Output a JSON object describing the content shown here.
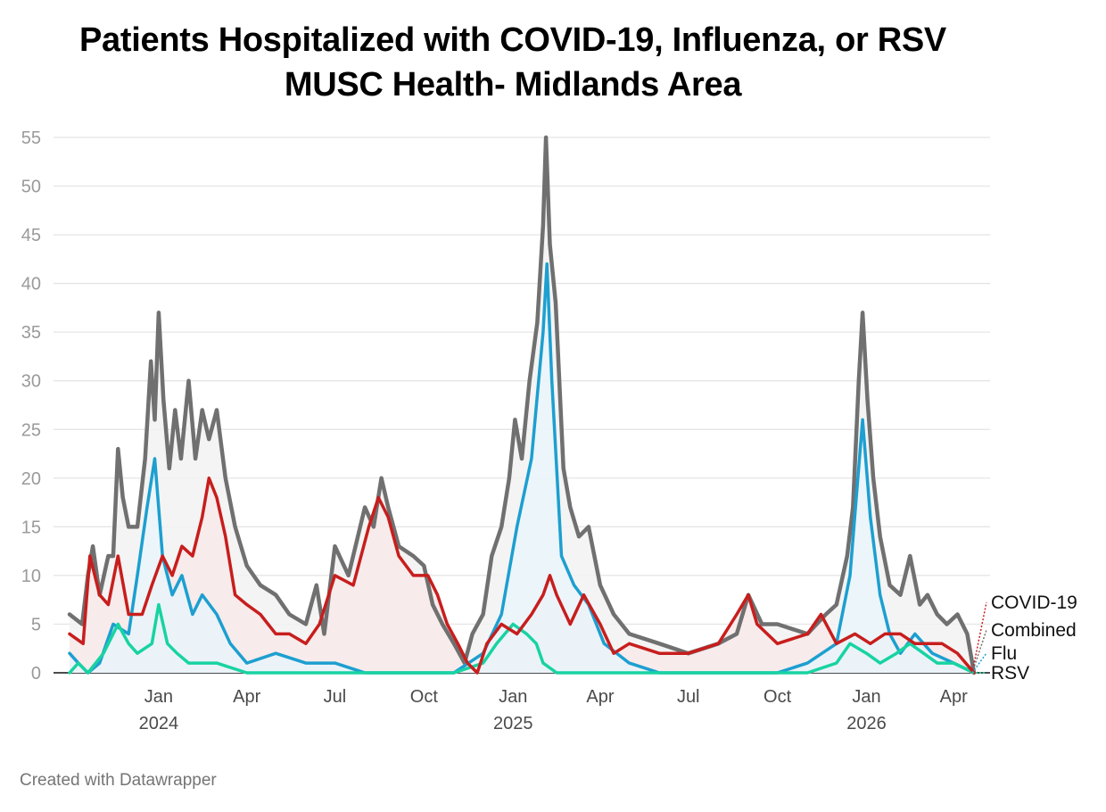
{
  "title_line1": "Patients Hospitalized with COVID-19, Influenza, or RSV",
  "title_line2": "MUSC Health- Midlands Area",
  "footer": "Created with Datawrapper",
  "chart_data": {
    "type": "line",
    "title": "Patients Hospitalized with COVID-19, Influenza, or RSV",
    "subtitle": "MUSC Health- Midlands Area",
    "x_start": "2023-10-01",
    "x_end": "2026-04-22",
    "ylim": [
      0,
      55
    ],
    "y_ticks": [
      0,
      5,
      10,
      15,
      20,
      25,
      30,
      35,
      40,
      45,
      50,
      55
    ],
    "x_ticks": [
      {
        "date": "2024-01-01",
        "label": "Jan",
        "year": "2024"
      },
      {
        "date": "2024-04-01",
        "label": "Apr",
        "year": ""
      },
      {
        "date": "2024-07-01",
        "label": "Jul",
        "year": ""
      },
      {
        "date": "2024-10-01",
        "label": "Oct",
        "year": ""
      },
      {
        "date": "2025-01-01",
        "label": "Jan",
        "year": "2025"
      },
      {
        "date": "2025-04-01",
        "label": "Apr",
        "year": ""
      },
      {
        "date": "2025-07-01",
        "label": "Jul",
        "year": ""
      },
      {
        "date": "2025-10-01",
        "label": "Oct",
        "year": ""
      },
      {
        "date": "2026-01-01",
        "label": "Jan",
        "year": "2026"
      },
      {
        "date": "2026-04-01",
        "label": "Apr",
        "year": ""
      }
    ],
    "grid": true,
    "legend": "end-of-line labels, right",
    "series": [
      {
        "name": "Combined",
        "color": "#707070",
        "points": [
          [
            "2023-10-01",
            6
          ],
          [
            "2023-10-14",
            5
          ],
          [
            "2023-10-20",
            10
          ],
          [
            "2023-10-25",
            13
          ],
          [
            "2023-11-01",
            8
          ],
          [
            "2023-11-10",
            12
          ],
          [
            "2023-11-15",
            12
          ],
          [
            "2023-11-20",
            23
          ],
          [
            "2023-11-25",
            18
          ],
          [
            "2023-12-01",
            15
          ],
          [
            "2023-12-10",
            15
          ],
          [
            "2023-12-18",
            22
          ],
          [
            "2023-12-24",
            32
          ],
          [
            "2023-12-28",
            26
          ],
          [
            "2024-01-01",
            37
          ],
          [
            "2024-01-06",
            28
          ],
          [
            "2024-01-12",
            21
          ],
          [
            "2024-01-18",
            27
          ],
          [
            "2024-01-24",
            22
          ],
          [
            "2024-02-01",
            30
          ],
          [
            "2024-02-08",
            22
          ],
          [
            "2024-02-15",
            27
          ],
          [
            "2024-02-22",
            24
          ],
          [
            "2024-03-01",
            27
          ],
          [
            "2024-03-10",
            20
          ],
          [
            "2024-03-20",
            15
          ],
          [
            "2024-04-01",
            11
          ],
          [
            "2024-04-15",
            9
          ],
          [
            "2024-05-01",
            8
          ],
          [
            "2024-05-15",
            6
          ],
          [
            "2024-06-01",
            5
          ],
          [
            "2024-06-12",
            9
          ],
          [
            "2024-06-20",
            4
          ],
          [
            "2024-07-01",
            13
          ],
          [
            "2024-07-15",
            10
          ],
          [
            "2024-08-01",
            17
          ],
          [
            "2024-08-10",
            15
          ],
          [
            "2024-08-18",
            20
          ],
          [
            "2024-08-25",
            17
          ],
          [
            "2024-09-05",
            13
          ],
          [
            "2024-09-20",
            12
          ],
          [
            "2024-10-01",
            11
          ],
          [
            "2024-10-10",
            7
          ],
          [
            "2024-10-20",
            5
          ],
          [
            "2024-11-01",
            3
          ],
          [
            "2024-11-12",
            1
          ],
          [
            "2024-11-20",
            4
          ],
          [
            "2024-12-01",
            6
          ],
          [
            "2024-12-10",
            12
          ],
          [
            "2024-12-20",
            15
          ],
          [
            "2024-12-28",
            20
          ],
          [
            "2025-01-03",
            26
          ],
          [
            "2025-01-10",
            22
          ],
          [
            "2025-01-18",
            30
          ],
          [
            "2025-01-26",
            36
          ],
          [
            "2025-02-01",
            46
          ],
          [
            "2025-02-04",
            55
          ],
          [
            "2025-02-08",
            44
          ],
          [
            "2025-02-14",
            38
          ],
          [
            "2025-02-22",
            21
          ],
          [
            "2025-03-01",
            17
          ],
          [
            "2025-03-10",
            14
          ],
          [
            "2025-03-20",
            15
          ],
          [
            "2025-04-01",
            9
          ],
          [
            "2025-04-15",
            6
          ],
          [
            "2025-05-01",
            4
          ],
          [
            "2025-06-01",
            3
          ],
          [
            "2025-07-01",
            2
          ],
          [
            "2025-08-01",
            3
          ],
          [
            "2025-08-20",
            4
          ],
          [
            "2025-09-01",
            8
          ],
          [
            "2025-09-15",
            5
          ],
          [
            "2025-10-01",
            5
          ],
          [
            "2025-11-01",
            4
          ],
          [
            "2025-11-20",
            6
          ],
          [
            "2025-12-01",
            7
          ],
          [
            "2025-12-12",
            12
          ],
          [
            "2025-12-18",
            17
          ],
          [
            "2025-12-24",
            30
          ],
          [
            "2025-12-28",
            37
          ],
          [
            "2026-01-02",
            28
          ],
          [
            "2026-01-08",
            20
          ],
          [
            "2026-01-15",
            14
          ],
          [
            "2026-01-25",
            9
          ],
          [
            "2026-02-05",
            8
          ],
          [
            "2026-02-15",
            12
          ],
          [
            "2026-02-25",
            7
          ],
          [
            "2026-03-05",
            8
          ],
          [
            "2026-03-15",
            6
          ],
          [
            "2026-03-25",
            5
          ],
          [
            "2026-04-05",
            6
          ],
          [
            "2026-04-15",
            4
          ],
          [
            "2026-04-22",
            0
          ]
        ]
      },
      {
        "name": "COVID-19",
        "color": "#c71e1d",
        "points": [
          [
            "2023-10-01",
            4
          ],
          [
            "2023-10-15",
            3
          ],
          [
            "2023-10-22",
            12
          ],
          [
            "2023-11-01",
            8
          ],
          [
            "2023-11-10",
            7
          ],
          [
            "2023-11-20",
            12
          ],
          [
            "2023-12-01",
            6
          ],
          [
            "2023-12-15",
            6
          ],
          [
            "2023-12-25",
            9
          ],
          [
            "2024-01-05",
            12
          ],
          [
            "2024-01-15",
            10
          ],
          [
            "2024-01-25",
            13
          ],
          [
            "2024-02-05",
            12
          ],
          [
            "2024-02-15",
            16
          ],
          [
            "2024-02-22",
            20
          ],
          [
            "2024-03-01",
            18
          ],
          [
            "2024-03-10",
            14
          ],
          [
            "2024-03-20",
            8
          ],
          [
            "2024-04-01",
            7
          ],
          [
            "2024-04-15",
            6
          ],
          [
            "2024-05-01",
            4
          ],
          [
            "2024-05-15",
            4
          ],
          [
            "2024-06-01",
            3
          ],
          [
            "2024-06-15",
            5
          ],
          [
            "2024-07-01",
            10
          ],
          [
            "2024-07-20",
            9
          ],
          [
            "2024-08-05",
            15
          ],
          [
            "2024-08-15",
            18
          ],
          [
            "2024-08-25",
            16
          ],
          [
            "2024-09-05",
            12
          ],
          [
            "2024-09-20",
            10
          ],
          [
            "2024-10-05",
            10
          ],
          [
            "2024-10-15",
            8
          ],
          [
            "2024-10-25",
            5
          ],
          [
            "2024-11-05",
            3
          ],
          [
            "2024-11-15",
            1
          ],
          [
            "2024-11-25",
            0
          ],
          [
            "2024-12-05",
            3
          ],
          [
            "2024-12-20",
            5
          ],
          [
            "2025-01-05",
            4
          ],
          [
            "2025-01-20",
            6
          ],
          [
            "2025-02-01",
            8
          ],
          [
            "2025-02-08",
            10
          ],
          [
            "2025-02-15",
            8
          ],
          [
            "2025-03-01",
            5
          ],
          [
            "2025-03-15",
            8
          ],
          [
            "2025-04-01",
            5
          ],
          [
            "2025-04-15",
            2
          ],
          [
            "2025-05-01",
            3
          ],
          [
            "2025-06-01",
            2
          ],
          [
            "2025-07-01",
            2
          ],
          [
            "2025-08-01",
            3
          ],
          [
            "2025-08-20",
            6
          ],
          [
            "2025-09-01",
            8
          ],
          [
            "2025-09-10",
            5
          ],
          [
            "2025-10-01",
            3
          ],
          [
            "2025-11-01",
            4
          ],
          [
            "2025-11-15",
            6
          ],
          [
            "2025-12-01",
            3
          ],
          [
            "2025-12-20",
            4
          ],
          [
            "2026-01-05",
            3
          ],
          [
            "2026-01-20",
            4
          ],
          [
            "2026-02-05",
            4
          ],
          [
            "2026-02-20",
            3
          ],
          [
            "2026-03-05",
            3
          ],
          [
            "2026-03-20",
            3
          ],
          [
            "2026-04-05",
            2
          ],
          [
            "2026-04-22",
            0
          ]
        ]
      },
      {
        "name": "Flu",
        "color": "#1d9fd0",
        "points": [
          [
            "2023-10-01",
            2
          ],
          [
            "2023-10-10",
            1
          ],
          [
            "2023-10-20",
            0
          ],
          [
            "2023-11-01",
            1
          ],
          [
            "2023-11-15",
            5
          ],
          [
            "2023-12-01",
            4
          ],
          [
            "2023-12-10",
            10
          ],
          [
            "2023-12-20",
            17
          ],
          [
            "2023-12-28",
            22
          ],
          [
            "2024-01-05",
            12
          ],
          [
            "2024-01-15",
            8
          ],
          [
            "2024-01-25",
            10
          ],
          [
            "2024-02-05",
            6
          ],
          [
            "2024-02-15",
            8
          ],
          [
            "2024-03-01",
            6
          ],
          [
            "2024-03-15",
            3
          ],
          [
            "2024-04-01",
            1
          ],
          [
            "2024-05-01",
            2
          ],
          [
            "2024-06-01",
            1
          ],
          [
            "2024-07-01",
            1
          ],
          [
            "2024-08-01",
            0
          ],
          [
            "2024-09-01",
            0
          ],
          [
            "2024-10-01",
            0
          ],
          [
            "2024-11-01",
            0
          ],
          [
            "2024-12-01",
            2
          ],
          [
            "2024-12-20",
            6
          ],
          [
            "2025-01-05",
            15
          ],
          [
            "2025-01-20",
            22
          ],
          [
            "2025-02-01",
            35
          ],
          [
            "2025-02-05",
            42
          ],
          [
            "2025-02-10",
            30
          ],
          [
            "2025-02-20",
            12
          ],
          [
            "2025-03-05",
            9
          ],
          [
            "2025-03-20",
            7
          ],
          [
            "2025-04-05",
            3
          ],
          [
            "2025-05-01",
            1
          ],
          [
            "2025-06-01",
            0
          ],
          [
            "2025-07-01",
            0
          ],
          [
            "2025-08-01",
            0
          ],
          [
            "2025-09-01",
            0
          ],
          [
            "2025-10-01",
            0
          ],
          [
            "2025-11-01",
            1
          ],
          [
            "2025-12-01",
            3
          ],
          [
            "2025-12-15",
            10
          ],
          [
            "2025-12-28",
            26
          ],
          [
            "2026-01-05",
            16
          ],
          [
            "2026-01-15",
            8
          ],
          [
            "2026-01-25",
            4
          ],
          [
            "2026-02-05",
            2
          ],
          [
            "2026-02-20",
            4
          ],
          [
            "2026-03-10",
            2
          ],
          [
            "2026-04-01",
            1
          ],
          [
            "2026-04-22",
            0
          ]
        ]
      },
      {
        "name": "RSV",
        "color": "#18d3a2",
        "points": [
          [
            "2023-10-01",
            0
          ],
          [
            "2023-10-10",
            1
          ],
          [
            "2023-10-20",
            0
          ],
          [
            "2023-11-05",
            2
          ],
          [
            "2023-11-20",
            5
          ],
          [
            "2023-12-01",
            3
          ],
          [
            "2023-12-10",
            2
          ],
          [
            "2023-12-25",
            3
          ],
          [
            "2024-01-01",
            7
          ],
          [
            "2024-01-10",
            3
          ],
          [
            "2024-01-20",
            2
          ],
          [
            "2024-02-01",
            1
          ],
          [
            "2024-03-01",
            1
          ],
          [
            "2024-04-01",
            0
          ],
          [
            "2024-05-01",
            0
          ],
          [
            "2024-06-01",
            0
          ],
          [
            "2024-07-01",
            0
          ],
          [
            "2024-08-01",
            0
          ],
          [
            "2024-09-01",
            0
          ],
          [
            "2024-10-01",
            0
          ],
          [
            "2024-11-01",
            0
          ],
          [
            "2024-12-01",
            1
          ],
          [
            "2024-12-15",
            3
          ],
          [
            "2025-01-01",
            5
          ],
          [
            "2025-01-15",
            4
          ],
          [
            "2025-01-25",
            3
          ],
          [
            "2025-02-01",
            1
          ],
          [
            "2025-02-15",
            0
          ],
          [
            "2025-03-01",
            0
          ],
          [
            "2025-04-01",
            0
          ],
          [
            "2025-05-01",
            0
          ],
          [
            "2025-06-01",
            0
          ],
          [
            "2025-07-01",
            0
          ],
          [
            "2025-08-01",
            0
          ],
          [
            "2025-09-01",
            0
          ],
          [
            "2025-10-01",
            0
          ],
          [
            "2025-11-01",
            0
          ],
          [
            "2025-12-01",
            1
          ],
          [
            "2025-12-15",
            3
          ],
          [
            "2026-01-01",
            2
          ],
          [
            "2026-01-15",
            1
          ],
          [
            "2026-02-01",
            2
          ],
          [
            "2026-02-15",
            3
          ],
          [
            "2026-03-01",
            2
          ],
          [
            "2026-03-15",
            1
          ],
          [
            "2026-04-01",
            1
          ],
          [
            "2026-04-22",
            0
          ]
        ]
      }
    ],
    "labels": [
      "COVID-19",
      "Combined",
      "Flu",
      "RSV"
    ]
  }
}
